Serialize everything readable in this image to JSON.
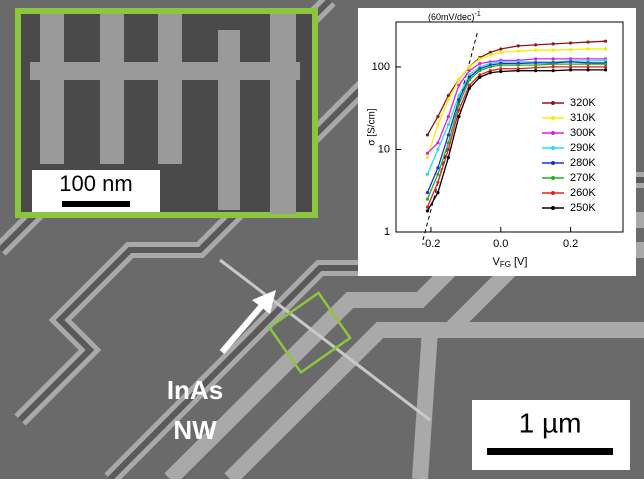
{
  "image": {
    "inset_scale_label": "100 nm",
    "nanowire_label_line1": "InAs",
    "nanowire_label_line2": "NW",
    "scale_label": "1 µm"
  },
  "chart_data": {
    "type": "line",
    "y_label": "σ [S/cm]",
    "x_label_main": "V",
    "x_label_sub": "FG",
    "x_label_unit": "[V]",
    "annotation": "(60mV/dec)",
    "annotation_sup": "-1",
    "log_y": true,
    "xlim": [
      -0.3,
      0.35
    ],
    "ylim": [
      1,
      350
    ],
    "xticks": [
      -0.2,
      {
        "value": 0,
        "label": "0.0"
      },
      0.2
    ],
    "yticks": [
      1,
      10,
      100
    ],
    "legend": "right",
    "x": [
      -0.21,
      -0.18,
      -0.15,
      -0.12,
      -0.09,
      -0.06,
      -0.03,
      0,
      0.05,
      0.1,
      0.15,
      0.2,
      0.25,
      0.3
    ],
    "series": [
      {
        "name": "320K",
        "color": "#8b1a1a",
        "values": [
          15,
          25,
          45,
          70,
          100,
          130,
          150,
          165,
          180,
          185,
          190,
          195,
          200,
          205
        ]
      },
      {
        "name": "310K",
        "color": "#f5f000",
        "values": [
          8,
          20,
          40,
          70,
          100,
          125,
          140,
          150,
          155,
          160,
          160,
          162,
          165,
          165
        ]
      },
      {
        "name": "300K",
        "color": "#e020e0",
        "values": [
          9,
          12,
          25,
          60,
          90,
          110,
          115,
          120,
          120,
          125,
          125,
          125,
          125,
          125
        ]
      },
      {
        "name": "290K",
        "color": "#20e0f0",
        "values": [
          5,
          10,
          20,
          45,
          80,
          100,
          110,
          115,
          115,
          115,
          115,
          118,
          118,
          120
        ]
      },
      {
        "name": "280K",
        "color": "#2030d0",
        "values": [
          3,
          6,
          15,
          40,
          75,
          95,
          105,
          110,
          110,
          112,
          112,
          115,
          112,
          112
        ]
      },
      {
        "name": "270K",
        "color": "#20b020",
        "values": [
          2.5,
          5,
          12,
          35,
          70,
          90,
          100,
          105,
          105,
          105,
          108,
          108,
          108,
          108
        ]
      },
      {
        "name": "260K",
        "color": "#e02020",
        "values": [
          2,
          4,
          10,
          30,
          60,
          80,
          90,
          95,
          95,
          98,
          100,
          100,
          100,
          100
        ]
      },
      {
        "name": "250K",
        "color": "#000000",
        "values": [
          1.8,
          3,
          8,
          25,
          55,
          75,
          85,
          88,
          90,
          90,
          90,
          92,
          92,
          92
        ]
      }
    ]
  }
}
